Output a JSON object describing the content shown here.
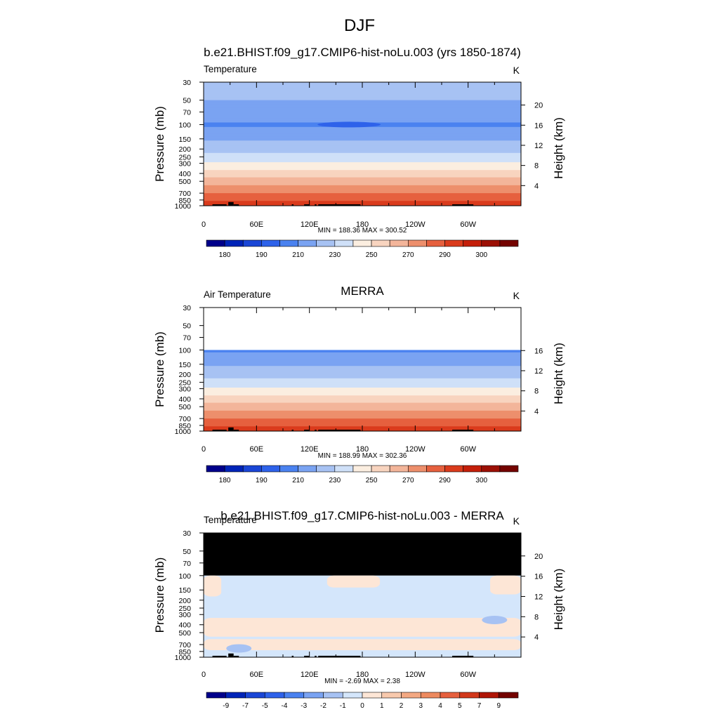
{
  "figure_title": "DJF",
  "colors": {
    "temperature": [
      "#00008b",
      "#0024b8",
      "#1a46d6",
      "#2e62ea",
      "#4a82f0",
      "#7aa3f2",
      "#a7c2f3",
      "#cfe0f8",
      "#fbeee0",
      "#f8d4bf",
      "#f3b59a",
      "#ed8f6c",
      "#e6603e",
      "#da3b1c",
      "#c41f0a",
      "#9c1005",
      "#740300"
    ],
    "difference": [
      "#00008b",
      "#0024b8",
      "#1a46d6",
      "#2e62ea",
      "#4a82f0",
      "#7aa3f2",
      "#a7c2f3",
      "#d4e6fb",
      "#fde6d6",
      "#f8c9ad",
      "#f3a882",
      "#ed8a5f",
      "#e6603e",
      "#d2381b",
      "#b01506",
      "#740300"
    ],
    "mask": "#000000"
  },
  "chart_data": [
    {
      "type": "heatmap",
      "panel_id": "model",
      "title": "b.e21.BHIST.f09_g17.CMIP6-hist-noLu.003 (yrs 1850-1874)",
      "left_string": "Temperature",
      "right_string": "K",
      "xlabel": "",
      "ylabel": "Pressure (mb)",
      "ylabel_right": "Height (km)",
      "x_ticks": [
        "0",
        "60E",
        "120E",
        "180",
        "120W",
        "60W"
      ],
      "x_tick_values": [
        0,
        60,
        120,
        180,
        240,
        300
      ],
      "xlim": [
        0,
        360
      ],
      "y_ticks": [
        "30",
        "50",
        "70",
        "100",
        "150",
        "200",
        "250",
        "300",
        "400",
        "500",
        "700",
        "850",
        "1000"
      ],
      "y_tick_values": [
        30,
        50,
        70,
        100,
        150,
        200,
        250,
        300,
        400,
        500,
        700,
        850,
        1000
      ],
      "ylim": [
        1000,
        30
      ],
      "height_ticks": [
        "4",
        "8",
        "12",
        "16",
        "20"
      ],
      "height_tick_values": [
        4,
        8,
        12,
        16,
        20
      ],
      "min_max": "MIN = 188.36  MAX = 300.52",
      "colorbar_labels": [
        "180",
        "190",
        "210",
        "230",
        "250",
        "270",
        "290",
        "300"
      ],
      "colorbar_levels": [
        175,
        180,
        185,
        190,
        200,
        210,
        220,
        230,
        240,
        250,
        260,
        270,
        280,
        290,
        295,
        300
      ],
      "data_start_pressure": 30,
      "pressure_levels": [
        30,
        50,
        70,
        100,
        150,
        200,
        250,
        300,
        400,
        500,
        700,
        850,
        1000
      ],
      "temperature_profile": [
        219,
        210,
        203,
        199,
        208,
        216,
        223,
        231,
        244,
        255,
        270,
        279,
        289
      ],
      "cold_core": {
        "lon": 165,
        "pressure": 100,
        "value": 188
      }
    },
    {
      "type": "heatmap",
      "panel_id": "obs",
      "title": "MERRA",
      "left_string": "Air Temperature",
      "right_string": "K",
      "xlabel": "",
      "ylabel": "Pressure (mb)",
      "ylabel_right": "Height (km)",
      "x_ticks": [
        "0",
        "60E",
        "120E",
        "180",
        "120W",
        "60W"
      ],
      "x_tick_values": [
        0,
        60,
        120,
        180,
        240,
        300
      ],
      "xlim": [
        0,
        360
      ],
      "y_ticks": [
        "30",
        "50",
        "70",
        "100",
        "150",
        "200",
        "250",
        "300",
        "400",
        "500",
        "700",
        "850",
        "1000"
      ],
      "y_tick_values": [
        30,
        50,
        70,
        100,
        150,
        200,
        250,
        300,
        400,
        500,
        700,
        850,
        1000
      ],
      "ylim": [
        1000,
        30
      ],
      "height_ticks": [
        "4",
        "8",
        "12",
        "16"
      ],
      "height_tick_values": [
        4,
        8,
        12,
        16
      ],
      "min_max": "MIN = 188.99  MAX = 302.36",
      "colorbar_labels": [
        "180",
        "190",
        "210",
        "230",
        "250",
        "270",
        "290",
        "300"
      ],
      "colorbar_levels": [
        175,
        180,
        185,
        190,
        200,
        210,
        220,
        230,
        240,
        250,
        260,
        270,
        280,
        290,
        295,
        300
      ],
      "data_start_pressure": 100,
      "pressure_levels": [
        100,
        150,
        200,
        250,
        300,
        400,
        500,
        700,
        850,
        1000
      ],
      "temperature_profile": [
        199,
        208,
        216,
        223,
        231,
        244,
        255,
        270,
        279,
        290
      ]
    },
    {
      "type": "heatmap",
      "panel_id": "diff",
      "title": "b.e21.BHIST.f09_g17.CMIP6-hist-noLu.003 - MERRA",
      "left_string": "Temperature",
      "right_string": "K",
      "xlabel": "",
      "ylabel": "Pressure (mb)",
      "ylabel_right": "Height (km)",
      "x_ticks": [
        "0",
        "60E",
        "120E",
        "180",
        "120W",
        "60W"
      ],
      "x_tick_values": [
        0,
        60,
        120,
        180,
        240,
        300
      ],
      "xlim": [
        0,
        360
      ],
      "y_ticks": [
        "30",
        "50",
        "70",
        "100",
        "150",
        "200",
        "250",
        "300",
        "400",
        "500",
        "700",
        "850",
        "1000"
      ],
      "y_tick_values": [
        30,
        50,
        70,
        100,
        150,
        200,
        250,
        300,
        400,
        500,
        700,
        850,
        1000
      ],
      "ylim": [
        1000,
        30
      ],
      "height_ticks": [
        "4",
        "8",
        "12",
        "16",
        "20"
      ],
      "height_tick_values": [
        4,
        8,
        12,
        16,
        20
      ],
      "min_max": "MIN =  -2.69  MAX =   2.38",
      "colorbar_labels": [
        "-9",
        "-7",
        "-5",
        "-4",
        "-3",
        "-2",
        "-1",
        "0",
        "1",
        "2",
        "3",
        "4",
        "5",
        "7",
        "9"
      ],
      "colorbar_levels": [
        -9,
        -7,
        -5,
        -4,
        -3,
        -2,
        -1,
        0,
        1,
        2,
        3,
        4,
        5,
        7,
        9
      ],
      "masked_above_pressure": 100,
      "background_value": -0.5,
      "positive_regions": [
        {
          "lon_range": [
            0,
            360
          ],
          "pressure_range": [
            330,
            560
          ],
          "value": 0.5
        },
        {
          "lon_range": [
            0,
            360
          ],
          "pressure_range": [
            600,
            820
          ],
          "value": 0.5
        },
        {
          "lon_range": [
            0,
            20
          ],
          "pressure_range": [
            100,
            180
          ],
          "value": 0.5
        },
        {
          "lon_range": [
            140,
            200
          ],
          "pressure_range": [
            100,
            140
          ],
          "value": 0.5
        },
        {
          "lon_range": [
            325,
            360
          ],
          "pressure_range": [
            100,
            170
          ],
          "value": 0.5
        }
      ],
      "negative_spots": [
        {
          "lon": 330,
          "pressure": 350,
          "value": -1.5
        },
        {
          "lon": 40,
          "pressure": 780,
          "value": -1.5
        }
      ]
    }
  ],
  "topography": [
    {
      "lon_range": [
        10,
        26
      ],
      "pressure_top": 960
    },
    {
      "lon_range": [
        28,
        34
      ],
      "pressure_top": 900
    },
    {
      "lon_range": [
        34,
        40
      ],
      "pressure_top": 960
    },
    {
      "lon_range": [
        100,
        102
      ],
      "pressure_top": 960
    },
    {
      "lon_range": [
        114,
        120
      ],
      "pressure_top": 960
    },
    {
      "lon_range": [
        126,
        128
      ],
      "pressure_top": 960
    },
    {
      "lon_range": [
        130,
        178
      ],
      "pressure_top": 960
    },
    {
      "lon_range": [
        282,
        306
      ],
      "pressure_top": 960
    }
  ]
}
